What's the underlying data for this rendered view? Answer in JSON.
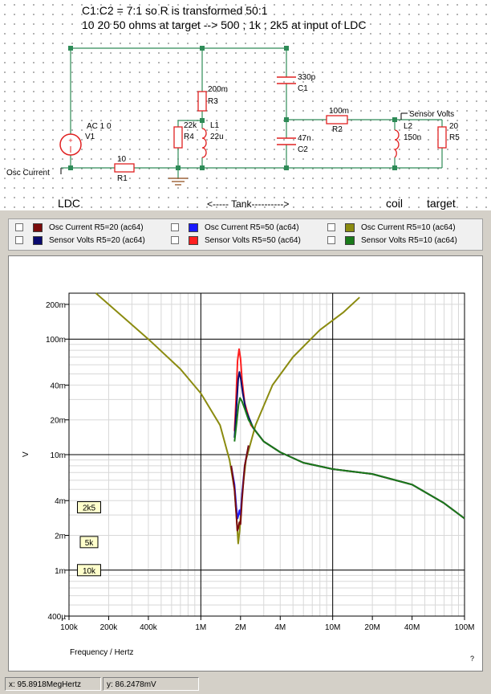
{
  "schematic": {
    "note_line1": "C1:C2 = 7:1 so R is transformed 50:1",
    "note_line2": "10 20 50 ohms at target --> 500 ; 1k ; 2k5  at input of LDC",
    "labels": {
      "v1_name": "AC 1  0",
      "v1_ref": "V1",
      "r1_val": "10",
      "r1_ref": "R1",
      "osc_current": "Osc Current",
      "r3_val": "200m",
      "r3_ref": "R3",
      "r4_val": "22k",
      "r4_ref": "R4",
      "l1_ref": "L1",
      "l1_val": "22u",
      "c1_val": "330p",
      "c1_ref": "C1",
      "c2_val": "47n",
      "c2_ref": "C2",
      "r2_val": "100m",
      "r2_ref": "R2",
      "sensor_volts": "Sensor Volts",
      "l2_ref": "L2",
      "l2_val": "150n",
      "r5_val": "20",
      "r5_ref": "R5"
    },
    "sections": {
      "ldc": "LDC",
      "tank": "<----- Tank---------->",
      "coil": "coil",
      "target": "target"
    }
  },
  "legend": [
    {
      "label": "Osc Current R5=20 (ac64)",
      "color": "#7a0c0c"
    },
    {
      "label": "Osc Current R5=50 (ac64)",
      "color": "#1a1aff"
    },
    {
      "label": "Osc Current R5=10 (ac64)",
      "color": "#8b8b10"
    },
    {
      "label": "Sensor Volts R5=20 (ac64)",
      "color": "#0a0a6e"
    },
    {
      "label": "Sensor Volts R5=50 (ac64)",
      "color": "#ff2020"
    },
    {
      "label": "Sensor Volts R5=10 (ac64)",
      "color": "#1a7a1a"
    }
  ],
  "chart_data": {
    "type": "line",
    "xlabel": "Frequency / Hertz",
    "ylabel": "V",
    "x_scale": "log",
    "y_scale": "log",
    "xlim": [
      100000,
      100000000
    ],
    "ylim": [
      0.0004,
      0.25
    ],
    "grid": true,
    "x_ticks": [
      {
        "v": 100000,
        "label": "100k"
      },
      {
        "v": 200000,
        "label": "200k"
      },
      {
        "v": 400000,
        "label": "400k"
      },
      {
        "v": 1000000,
        "label": "1M"
      },
      {
        "v": 2000000,
        "label": "2M"
      },
      {
        "v": 4000000,
        "label": "4M"
      },
      {
        "v": 10000000,
        "label": "10M"
      },
      {
        "v": 20000000,
        "label": "20M"
      },
      {
        "v": 40000000,
        "label": "40M"
      },
      {
        "v": 100000000,
        "label": "100M"
      }
    ],
    "y_ticks": [
      {
        "v": 0.0004,
        "label": "400µ"
      },
      {
        "v": 0.001,
        "label": "1m"
      },
      {
        "v": 0.002,
        "label": "2m"
      },
      {
        "v": 0.004,
        "label": "4m"
      },
      {
        "v": 0.01,
        "label": "10m"
      },
      {
        "v": 0.02,
        "label": "20m"
      },
      {
        "v": 0.04,
        "label": "40m"
      },
      {
        "v": 0.1,
        "label": "100m"
      },
      {
        "v": 0.2,
        "label": "200m"
      }
    ],
    "annotations": [
      {
        "text": "2k5",
        "y": 0.0035
      },
      {
        "text": "5k",
        "y": 0.00175
      },
      {
        "text": "10k",
        "y": 0.001
      }
    ],
    "series": [
      {
        "name": "Osc Current R5=10 (ac64)",
        "color": "#8b8b10",
        "points": [
          [
            160000,
            0.25
          ],
          [
            250000,
            0.16
          ],
          [
            400000,
            0.1
          ],
          [
            700000,
            0.055
          ],
          [
            1000000,
            0.034
          ],
          [
            1400000,
            0.018
          ],
          [
            1650000,
            0.009
          ],
          [
            1800000,
            0.005
          ],
          [
            1880000,
            0.0025
          ],
          [
            1920000,
            0.0017
          ],
          [
            1970000,
            0.0022
          ],
          [
            2050000,
            0.0045
          ],
          [
            2200000,
            0.009
          ],
          [
            2600000,
            0.018
          ],
          [
            3500000,
            0.04
          ],
          [
            5000000,
            0.07
          ],
          [
            8000000,
            0.12
          ],
          [
            12000000,
            0.17
          ],
          [
            16000000,
            0.23
          ]
        ]
      },
      {
        "name": "Sensor Volts R5=50 (ac64)",
        "color": "#ff2020",
        "points": [
          [
            1800000,
            0.016
          ],
          [
            1850000,
            0.03
          ],
          [
            1900000,
            0.065
          ],
          [
            1950000,
            0.082
          ],
          [
            2000000,
            0.068
          ],
          [
            2050000,
            0.045
          ],
          [
            2150000,
            0.028
          ],
          [
            2400000,
            0.018
          ],
          [
            3000000,
            0.013
          ],
          [
            4000000,
            0.0105
          ],
          [
            6000000,
            0.0085
          ],
          [
            10000000,
            0.0075
          ],
          [
            20000000,
            0.0068
          ],
          [
            40000000,
            0.0055
          ],
          [
            70000000,
            0.0038
          ],
          [
            100000000,
            0.0028
          ]
        ]
      },
      {
        "name": "Sensor Volts R5=20 (ac64)",
        "color": "#0a0a6e",
        "points": [
          [
            1800000,
            0.014
          ],
          [
            1860000,
            0.025
          ],
          [
            1920000,
            0.045
          ],
          [
            1960000,
            0.052
          ],
          [
            2010000,
            0.045
          ],
          [
            2080000,
            0.034
          ],
          [
            2200000,
            0.024
          ],
          [
            2500000,
            0.017
          ],
          [
            3000000,
            0.013
          ],
          [
            4000000,
            0.0105
          ],
          [
            6000000,
            0.0085
          ],
          [
            10000000,
            0.0075
          ],
          [
            20000000,
            0.0068
          ],
          [
            40000000,
            0.0055
          ],
          [
            70000000,
            0.0038
          ],
          [
            100000000,
            0.0028
          ]
        ]
      },
      {
        "name": "Sensor Volts R5=10 (ac64)",
        "color": "#1a7a1a",
        "points": [
          [
            1800000,
            0.013
          ],
          [
            1870000,
            0.019
          ],
          [
            1930000,
            0.027
          ],
          [
            1980000,
            0.031
          ],
          [
            2050000,
            0.029
          ],
          [
            2150000,
            0.025
          ],
          [
            2300000,
            0.02
          ],
          [
            2600000,
            0.016
          ],
          [
            3000000,
            0.013
          ],
          [
            4000000,
            0.0105
          ],
          [
            6000000,
            0.0085
          ],
          [
            10000000,
            0.0075
          ],
          [
            20000000,
            0.0068
          ],
          [
            40000000,
            0.0055
          ],
          [
            70000000,
            0.0038
          ],
          [
            100000000,
            0.0028
          ]
        ]
      },
      {
        "name": "Osc Current R5=50 (ac64)",
        "color": "#1a1aff",
        "points": [
          [
            1700000,
            0.008
          ],
          [
            1800000,
            0.0055
          ],
          [
            1860000,
            0.0035
          ],
          [
            1900000,
            0.0028
          ],
          [
            1930000,
            0.003
          ],
          [
            1960000,
            0.0033
          ],
          [
            2000000,
            0.003
          ],
          [
            2050000,
            0.0045
          ],
          [
            2150000,
            0.008
          ],
          [
            2300000,
            0.012
          ]
        ]
      },
      {
        "name": "Osc Current R5=20 (ac64)",
        "color": "#7a0c0c",
        "points": [
          [
            1700000,
            0.008
          ],
          [
            1800000,
            0.005
          ],
          [
            1860000,
            0.003
          ],
          [
            1890000,
            0.0022
          ],
          [
            1920000,
            0.0023
          ],
          [
            1960000,
            0.0026
          ],
          [
            2000000,
            0.0025
          ],
          [
            2050000,
            0.004
          ],
          [
            2150000,
            0.008
          ],
          [
            2300000,
            0.012
          ]
        ]
      }
    ]
  },
  "status": {
    "x_readout": "x: 95.8918MegHertz",
    "y_readout": "y: 86.2478mV"
  }
}
